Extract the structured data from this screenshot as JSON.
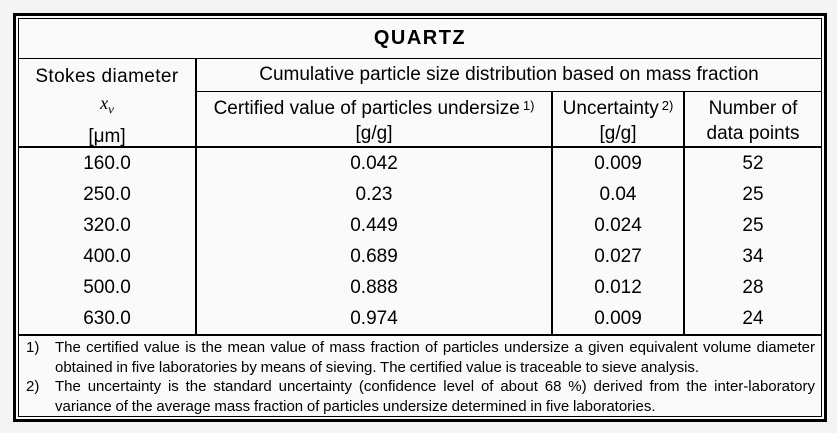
{
  "table": {
    "title": "QUARTZ",
    "header": {
      "col1_line1": "Stokes diameter",
      "col1_symbol": "x",
      "col1_symbol_sub": "v",
      "col1_unit": "[μm]",
      "span_header": "Cumulative particle size distribution based on mass fraction",
      "col2_label": "Certified value of particles undersize",
      "col2_sup": "1)",
      "col2_unit": "[g/g]",
      "col3_label": "Uncertainty",
      "col3_sup": "2)",
      "col3_unit": "[g/g]",
      "col4_line1": "Number of",
      "col4_line2": "data points"
    },
    "rows": [
      {
        "diameter": "160.0",
        "certified": "0.042",
        "uncertainty": "0.009",
        "points": "52"
      },
      {
        "diameter": "250.0",
        "certified": "0.23",
        "uncertainty": "0.04",
        "points": "25"
      },
      {
        "diameter": "320.0",
        "certified": "0.449",
        "uncertainty": "0.024",
        "points": "25"
      },
      {
        "diameter": "400.0",
        "certified": "0.689",
        "uncertainty": "0.027",
        "points": "34"
      },
      {
        "diameter": "500.0",
        "certified": "0.888",
        "uncertainty": "0.012",
        "points": "28"
      },
      {
        "diameter": "630.0",
        "certified": "0.974",
        "uncertainty": "0.009",
        "points": "24"
      }
    ],
    "footnotes": [
      {
        "marker": "1)",
        "text": "The certified value is the mean value of mass fraction of particles undersize a given equivalent volume diameter obtained in five laboratories by means of sieving. The certified value is traceable to sieve analysis."
      },
      {
        "marker": "2)",
        "text": "The uncertainty is the standard uncertainty (confidence level of about 68 %) derived from the inter-laboratory variance of the average mass fraction of particles undersize determined in five laboratories."
      }
    ]
  },
  "colors": {
    "border": "#000000",
    "page_background": "#f4f4f5",
    "cell_background": "#fafafa",
    "text": "#000000"
  }
}
